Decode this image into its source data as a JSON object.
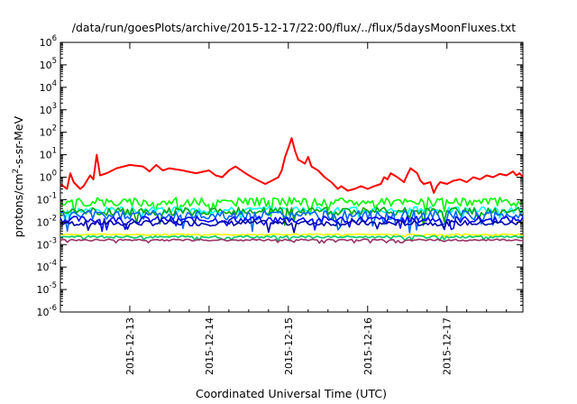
{
  "chart_data": {
    "type": "line",
    "title": "/data/run/goesPlots/archive/2015-12-17/22:00/flux/../flux/5daysMoonFluxes.txt",
    "xlabel": "Coordinated Universal Time (UTC)",
    "ylabel_parts": {
      "pre": "protons/cm",
      "sup": "2",
      "post": "-s-sr-MeV"
    },
    "yscale": "log",
    "ylim_exp": [
      -6,
      6
    ],
    "y_ticks": [
      {
        "exp": "-6"
      },
      {
        "exp": "-5"
      },
      {
        "exp": "-4"
      },
      {
        "exp": "-3"
      },
      {
        "exp": "-2"
      },
      {
        "exp": "-1"
      },
      {
        "exp": "0"
      },
      {
        "exp": "1"
      },
      {
        "exp": "2"
      },
      {
        "exp": "3"
      },
      {
        "exp": "4"
      },
      {
        "exp": "5"
      },
      {
        "exp": "6"
      }
    ],
    "y_tick_base": "10",
    "xlim": [
      "2015-12-12T03:00",
      "2015-12-17T23:00"
    ],
    "x_ticks": [
      {
        "label": "2015-12-13",
        "date": "2015-12-13T00:00"
      },
      {
        "label": "2015-12-14",
        "date": "2015-12-14T00:00"
      },
      {
        "label": "2015-12-15",
        "date": "2015-12-15T00:00"
      },
      {
        "label": "2015-12-16",
        "date": "2015-12-16T00:00"
      },
      {
        "label": "2015-12-17",
        "date": "2015-12-17T00:00"
      }
    ],
    "grid": false,
    "legend": "none",
    "series": [
      {
        "color": "#ff0000",
        "points": [
          [
            "2015-12-12T03:00",
            0.5
          ],
          [
            "2015-12-12T05:00",
            0.3
          ],
          [
            "2015-12-12T06:00",
            1.5
          ],
          [
            "2015-12-12T07:00",
            0.6
          ],
          [
            "2015-12-12T09:00",
            0.3
          ],
          [
            "2015-12-12T10:00",
            0.4
          ],
          [
            "2015-12-12T12:00",
            1.2
          ],
          [
            "2015-12-12T13:00",
            0.8
          ],
          [
            "2015-12-12T14:00",
            10
          ],
          [
            "2015-12-12T15:00",
            1.2
          ],
          [
            "2015-12-12T17:00",
            1.5
          ],
          [
            "2015-12-12T20:00",
            2.5
          ],
          [
            "2015-12-13T00:00",
            3.5
          ],
          [
            "2015-12-13T04:00",
            3.0
          ],
          [
            "2015-12-13T06:00",
            1.8
          ],
          [
            "2015-12-13T08:00",
            3.5
          ],
          [
            "2015-12-13T10:00",
            2.0
          ],
          [
            "2015-12-13T12:00",
            2.5
          ],
          [
            "2015-12-13T16:00",
            2.0
          ],
          [
            "2015-12-13T20:00",
            1.5
          ],
          [
            "2015-12-14T00:00",
            2.0
          ],
          [
            "2015-12-14T02:00",
            1.2
          ],
          [
            "2015-12-14T04:00",
            1.0
          ],
          [
            "2015-12-14T06:00",
            2.0
          ],
          [
            "2015-12-14T08:00",
            3.0
          ],
          [
            "2015-12-14T11:00",
            1.5
          ],
          [
            "2015-12-14T13:00",
            1.0
          ],
          [
            "2015-12-14T15:00",
            0.7
          ],
          [
            "2015-12-14T17:00",
            0.5
          ],
          [
            "2015-12-14T19:00",
            0.7
          ],
          [
            "2015-12-14T21:00",
            1.0
          ],
          [
            "2015-12-14T22:00",
            2.0
          ],
          [
            "2015-12-14T23:00",
            8
          ],
          [
            "2015-12-15T00:00",
            20
          ],
          [
            "2015-12-15T01:00",
            55
          ],
          [
            "2015-12-15T02:00",
            15
          ],
          [
            "2015-12-15T03:00",
            6
          ],
          [
            "2015-12-15T04:00",
            5
          ],
          [
            "2015-12-15T05:00",
            4
          ],
          [
            "2015-12-15T06:00",
            8
          ],
          [
            "2015-12-15T07:00",
            3
          ],
          [
            "2015-12-15T09:00",
            2
          ],
          [
            "2015-12-15T11:00",
            1.0
          ],
          [
            "2015-12-15T13:00",
            0.6
          ],
          [
            "2015-12-15T15:00",
            0.3
          ],
          [
            "2015-12-15T16:00",
            0.4
          ],
          [
            "2015-12-15T18:00",
            0.25
          ],
          [
            "2015-12-15T20:00",
            0.3
          ],
          [
            "2015-12-15T22:00",
            0.4
          ],
          [
            "2015-12-16T00:00",
            0.3
          ],
          [
            "2015-12-16T02:00",
            0.4
          ],
          [
            "2015-12-16T04:00",
            0.5
          ],
          [
            "2015-12-16T05:00",
            1.0
          ],
          [
            "2015-12-16T06:00",
            0.8
          ],
          [
            "2015-12-16T07:00",
            1.5
          ],
          [
            "2015-12-16T09:00",
            1.0
          ],
          [
            "2015-12-16T11:00",
            0.6
          ],
          [
            "2015-12-16T12:00",
            1.3
          ],
          [
            "2015-12-16T13:00",
            2.5
          ],
          [
            "2015-12-16T15:00",
            1.5
          ],
          [
            "2015-12-16T16:00",
            0.7
          ],
          [
            "2015-12-16T17:00",
            0.5
          ],
          [
            "2015-12-16T19:00",
            0.6
          ],
          [
            "2015-12-16T20:00",
            0.2
          ],
          [
            "2015-12-16T21:00",
            0.4
          ],
          [
            "2015-12-16T22:00",
            0.6
          ],
          [
            "2015-12-17T00:00",
            0.5
          ],
          [
            "2015-12-17T02:00",
            0.7
          ],
          [
            "2015-12-17T04:00",
            0.8
          ],
          [
            "2015-12-17T06:00",
            0.6
          ],
          [
            "2015-12-17T08:00",
            1.0
          ],
          [
            "2015-12-17T10:00",
            0.8
          ],
          [
            "2015-12-17T12:00",
            1.2
          ],
          [
            "2015-12-17T14:00",
            1.0
          ],
          [
            "2015-12-17T16:00",
            1.4
          ],
          [
            "2015-12-17T18:00",
            1.2
          ],
          [
            "2015-12-17T20:00",
            1.8
          ],
          [
            "2015-12-17T21:00",
            1.2
          ],
          [
            "2015-12-17T22:00",
            1.5
          ],
          [
            "2015-12-17T23:00",
            1.0
          ]
        ]
      },
      {
        "color": "#00ff00",
        "level": 0.08,
        "amp_dex": 0.2
      },
      {
        "color": "#00ffff",
        "level": 0.035,
        "amp_dex": 0.15
      },
      {
        "color": "#00aa00",
        "level": 0.03,
        "amp_dex": 0.18
      },
      {
        "color": "#0066ff",
        "level": 0.02,
        "amp_dex": 0.22
      },
      {
        "color": "#0000ff",
        "level": 0.013,
        "amp_dex": 0.15
      },
      {
        "color": "#0000aa",
        "level": 0.009,
        "amp_dex": 0.12
      },
      {
        "color": "#ffff00",
        "level": 0.0028,
        "amp_dex": 0.03
      },
      {
        "color": "#00cc66",
        "level": 0.0022,
        "amp_dex": 0.05
      },
      {
        "color": "#993366",
        "level": 0.0016,
        "amp_dex": 0.04
      }
    ]
  }
}
